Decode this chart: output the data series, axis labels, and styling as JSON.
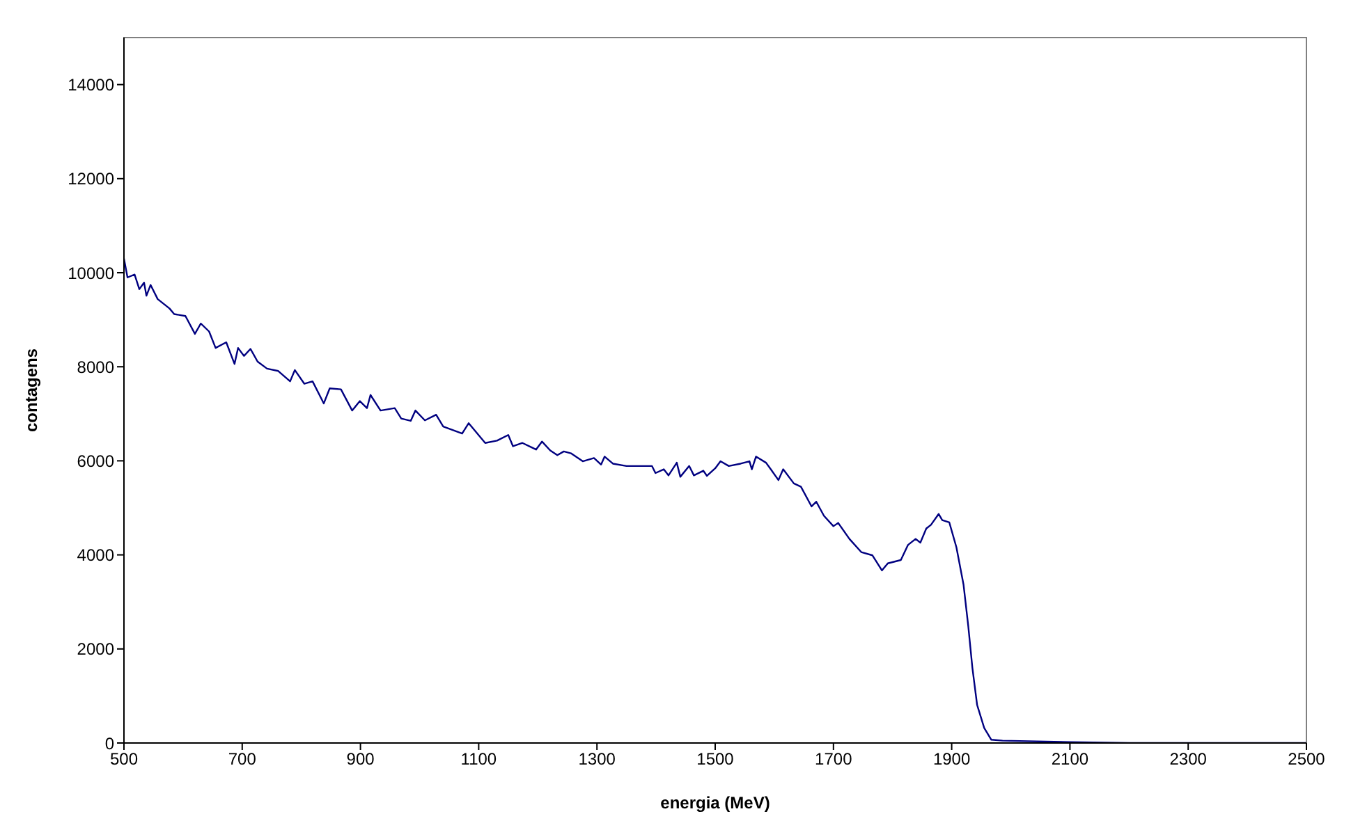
{
  "chart_data": {
    "type": "line",
    "xlabel": "energia (MeV)",
    "ylabel": "contagens",
    "xlim": [
      500,
      2500
    ],
    "ylim": [
      0,
      15000
    ],
    "xticks": [
      500,
      700,
      900,
      1100,
      1300,
      1500,
      1700,
      1900,
      2100,
      2300,
      2500
    ],
    "yticks": [
      0,
      2000,
      4000,
      6000,
      8000,
      10000,
      12000,
      14000
    ],
    "grid": false,
    "legend": false,
    "marker": "none",
    "line_style": "solid",
    "series": [
      {
        "color": "#000080",
        "x": [
          500,
          506,
          518,
          526,
          534,
          538,
          545,
          557,
          577,
          585,
          604,
          620,
          630,
          644,
          655,
          673,
          687,
          693,
          703,
          714,
          726,
          742,
          761,
          781,
          789,
          805,
          819,
          838,
          848,
          867,
          886,
          899,
          911,
          917,
          934,
          958,
          969,
          985,
          993,
          1009,
          1028,
          1040,
          1072,
          1083,
          1111,
          1131,
          1150,
          1158,
          1174,
          1197,
          1207,
          1221,
          1233,
          1244,
          1256,
          1276,
          1295,
          1307,
          1313,
          1327,
          1350,
          1378,
          1393,
          1399,
          1413,
          1421,
          1435,
          1441,
          1456,
          1464,
          1480,
          1486,
          1500,
          1509,
          1523,
          1543,
          1558,
          1562,
          1569,
          1586,
          1594,
          1607,
          1615,
          1633,
          1645,
          1663,
          1671,
          1684,
          1700,
          1708,
          1727,
          1747,
          1766,
          1782,
          1792,
          1814,
          1826,
          1839,
          1847,
          1857,
          1865,
          1878,
          1884,
          1896,
          1908,
          1920,
          1928,
          1935,
          1943,
          1955,
          1967,
          1986,
          2100,
          2200,
          2300,
          2500
        ],
        "values": [
          10300,
          9900,
          9960,
          9650,
          9790,
          9510,
          9740,
          9440,
          9240,
          9120,
          9080,
          8700,
          8920,
          8750,
          8400,
          8520,
          8060,
          8400,
          8230,
          8380,
          8110,
          7960,
          7910,
          7690,
          7930,
          7640,
          7690,
          7220,
          7540,
          7520,
          7070,
          7270,
          7120,
          7400,
          7070,
          7120,
          6900,
          6850,
          7070,
          6860,
          6980,
          6730,
          6580,
          6800,
          6380,
          6430,
          6550,
          6310,
          6380,
          6240,
          6410,
          6220,
          6120,
          6200,
          6160,
          5990,
          6060,
          5920,
          6090,
          5940,
          5890,
          5890,
          5890,
          5740,
          5820,
          5690,
          5960,
          5660,
          5890,
          5690,
          5790,
          5680,
          5840,
          5990,
          5890,
          5940,
          5990,
          5820,
          6090,
          5960,
          5820,
          5590,
          5820,
          5520,
          5450,
          5030,
          5130,
          4830,
          4610,
          4680,
          4340,
          4060,
          3990,
          3670,
          3820,
          3890,
          4210,
          4340,
          4260,
          4560,
          4640,
          4870,
          4740,
          4690,
          4160,
          3370,
          2490,
          1600,
          810,
          320,
          70,
          50,
          20,
          0,
          0,
          0
        ]
      }
    ]
  }
}
